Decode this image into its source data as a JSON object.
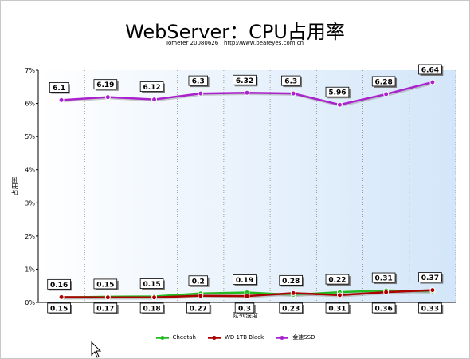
{
  "chart_data": {
    "type": "line",
    "title": "WebServer：CPU占用率",
    "subtitle": "Iometer 20080626 | http://www.beareyes.com.cn",
    "xlabel": "队列深度",
    "ylabel": "占用率",
    "ylim": [
      0,
      7
    ],
    "y_ticks": [
      "0%",
      "1%",
      "2%",
      "3%",
      "4%",
      "5%",
      "6%",
      "7%"
    ],
    "grid": "vertical dotted",
    "legend_position": "bottom",
    "x_count": 9,
    "series": [
      {
        "name": "Cheetah",
        "color": "#22bb22",
        "values": [
          0.15,
          0.17,
          0.18,
          0.27,
          0.3,
          0.23,
          0.31,
          0.36,
          0.33
        ],
        "labels": [
          "0.15",
          "0.17",
          "0.18",
          "0.27",
          "0.3",
          "0.23",
          "0.31",
          "0.36",
          "0.33"
        ]
      },
      {
        "name": "WD 1TB Black",
        "color": "#aa0000",
        "values": [
          0.16,
          0.15,
          0.15,
          0.2,
          0.19,
          0.28,
          0.22,
          0.31,
          0.37
        ],
        "labels": [
          "0.16",
          "0.15",
          "0.15",
          "0.2",
          "0.19",
          "0.28",
          "0.22",
          "0.31",
          "0.37"
        ]
      },
      {
        "name": "金速SSD",
        "color": "#aa22cc",
        "values": [
          6.1,
          6.19,
          6.12,
          6.3,
          6.32,
          6.3,
          5.96,
          6.28,
          6.64
        ],
        "labels": [
          "6.1",
          "6.19",
          "6.12",
          "6.3",
          "6.32",
          "6.3",
          "5.96",
          "6.28",
          "6.64"
        ]
      }
    ]
  }
}
